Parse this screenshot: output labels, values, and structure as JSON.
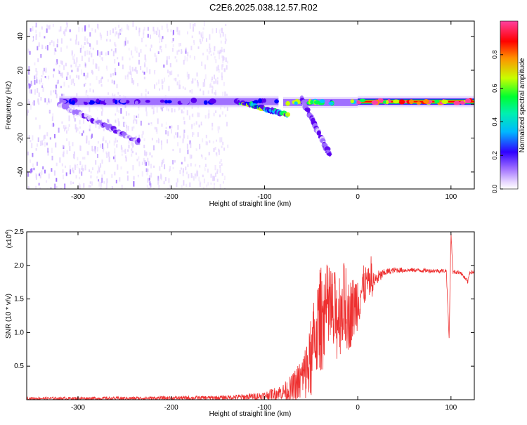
{
  "title": "C2E6.2025.038.12.57.R02",
  "colors": {
    "snr_line": "#ee3030",
    "axis": "#000000",
    "background": "#ffffff",
    "colormap": [
      "#ffffff",
      "#e6d6ff",
      "#a070ff",
      "#5a00f0",
      "#0000ff",
      "#00c8ff",
      "#00ff50",
      "#c8ff00",
      "#ff8c00",
      "#ff0000",
      "#ff40a0"
    ]
  },
  "colorbar": {
    "label": "Normalized spectral amplitude",
    "range": [
      0,
      1
    ],
    "ticks": [
      0.0,
      0.2,
      0.4,
      0.6,
      0.8
    ],
    "tick_labels": [
      "0.0",
      "0.2",
      "0.4",
      "0.6",
      "0.8"
    ]
  },
  "chart_data": [
    {
      "type": "heatmap",
      "xlabel": "Height of straight line (km)",
      "ylabel": "Frequency (Hz)",
      "xlim": [
        -355,
        125
      ],
      "ylim": [
        -50,
        49
      ],
      "xticks": [
        -300,
        -200,
        -100,
        0,
        100
      ],
      "xtick_labels": [
        "-300",
        "-200",
        "-100",
        "0",
        "100"
      ],
      "yticks": [
        -40,
        -20,
        0,
        20,
        40
      ],
      "ytick_labels": [
        "-40",
        "-20",
        "0",
        "20",
        "40"
      ],
      "features": [
        {
          "kind": "band",
          "x_range": [
            -320,
            -85
          ],
          "freq": 1.5,
          "amplitude": 0.3
        },
        {
          "kind": "band",
          "x_range": [
            -80,
            0
          ],
          "freq": 1.0,
          "amplitude": 0.55
        },
        {
          "kind": "band",
          "x_range": [
            0,
            125
          ],
          "freq": 1.5,
          "amplitude": 0.9
        },
        {
          "kind": "branch",
          "from": [
            -320,
            0
          ],
          "to": [
            -235,
            -22
          ],
          "amplitude": 0.2
        },
        {
          "kind": "branch",
          "from": [
            -125,
            1
          ],
          "to": [
            -75,
            -6
          ],
          "amplitude": 0.5
        },
        {
          "kind": "branch",
          "from": [
            -60,
            3
          ],
          "to": [
            -30,
            -30
          ],
          "amplitude": 0.25
        },
        {
          "kind": "noise",
          "x_range": [
            -355,
            -140
          ],
          "freq_range": [
            -50,
            49
          ],
          "amplitude": 0.05
        }
      ]
    },
    {
      "type": "line",
      "xlabel": "Height of straight line (km)",
      "ylabel": "SNR (10 * v/v)",
      "y_multiplier": "(x10",
      "y_multiplier_exp": "4",
      "y_multiplier_close": ")",
      "xlim": [
        -355,
        125
      ],
      "ylim": [
        0,
        2.5
      ],
      "xticks": [
        -300,
        -200,
        -100,
        0,
        100
      ],
      "xtick_labels": [
        "-300",
        "-200",
        "-100",
        "0",
        "100"
      ],
      "yticks": [
        0.5,
        1.0,
        1.5,
        2.0,
        2.5
      ],
      "ytick_labels": [
        "0.5",
        "1.0",
        "1.5",
        "2.0",
        "2.5"
      ],
      "series": [
        {
          "x": [
            -355,
            -300,
            -250,
            -200,
            -150,
            -120,
            -100,
            -80,
            -70,
            -60,
            -50,
            -45,
            -40,
            -35,
            -30,
            -25,
            -20,
            -15,
            -10,
            -5,
            0,
            5,
            10,
            15,
            20,
            25,
            30,
            40,
            60,
            80,
            95,
            98,
            100,
            102,
            110,
            118,
            120,
            125
          ],
          "y": [
            0.02,
            0.02,
            0.02,
            0.025,
            0.03,
            0.04,
            0.06,
            0.12,
            0.15,
            0.3,
            0.55,
            1.0,
            1.2,
            1.25,
            1.3,
            1.2,
            1.3,
            1.45,
            1.25,
            1.35,
            1.5,
            1.65,
            1.75,
            1.7,
            1.8,
            1.85,
            1.9,
            1.93,
            1.93,
            1.92,
            1.92,
            0.9,
            2.5,
            1.9,
            1.9,
            1.75,
            1.9,
            1.9
          ]
        }
      ],
      "noise_envelope": {
        "x": [
          -355,
          -150,
          -100,
          -80,
          -60,
          -50,
          -40,
          -30,
          -20,
          -10,
          0,
          10,
          20,
          30,
          60,
          125
        ],
        "amp": [
          0.02,
          0.03,
          0.06,
          0.12,
          0.35,
          0.55,
          0.8,
          0.75,
          0.7,
          0.55,
          0.45,
          0.25,
          0.12,
          0.05,
          0.03,
          0.03
        ]
      }
    }
  ]
}
